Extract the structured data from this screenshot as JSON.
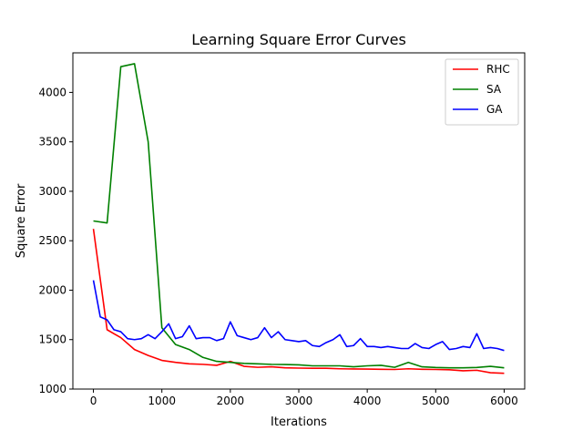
{
  "chart_data": {
    "type": "line",
    "title": "Learning Square Error Curves",
    "xlabel": "Iterations",
    "ylabel": "Square Error",
    "xlim": [
      -300,
      6300
    ],
    "ylim": [
      1000,
      4400
    ],
    "xticks": [
      0,
      1000,
      2000,
      3000,
      4000,
      5000,
      6000
    ],
    "yticks": [
      1000,
      1500,
      2000,
      2500,
      3000,
      3500,
      4000
    ],
    "grid": false,
    "legend_position": "top-right",
    "series": [
      {
        "name": "RHC",
        "color": "#ff0000",
        "x": [
          0,
          200,
          400,
          600,
          800,
          1000,
          1200,
          1400,
          1600,
          1800,
          2000,
          2200,
          2400,
          2600,
          2800,
          3000,
          3200,
          3400,
          3600,
          3800,
          4000,
          4200,
          4400,
          4600,
          4800,
          5000,
          5200,
          5400,
          5600,
          5800,
          6000
        ],
        "values": [
          2620,
          1600,
          1520,
          1400,
          1340,
          1290,
          1270,
          1255,
          1250,
          1240,
          1280,
          1230,
          1220,
          1225,
          1215,
          1212,
          1210,
          1210,
          1205,
          1203,
          1202,
          1200,
          1198,
          1205,
          1200,
          1198,
          1195,
          1185,
          1190,
          1165,
          1160
        ]
      },
      {
        "name": "SA",
        "color": "#008000",
        "x": [
          0,
          200,
          400,
          600,
          800,
          1000,
          1200,
          1400,
          1600,
          1800,
          2000,
          2200,
          2400,
          2600,
          2800,
          3000,
          3200,
          3400,
          3600,
          3800,
          4000,
          4200,
          4400,
          4600,
          4800,
          5000,
          5200,
          5400,
          5600,
          5800,
          6000
        ],
        "values": [
          2700,
          2680,
          4260,
          4290,
          3500,
          1620,
          1450,
          1400,
          1320,
          1280,
          1270,
          1260,
          1255,
          1250,
          1248,
          1245,
          1235,
          1235,
          1235,
          1225,
          1235,
          1240,
          1220,
          1270,
          1225,
          1218,
          1215,
          1215,
          1218,
          1230,
          1215
        ]
      },
      {
        "name": "GA",
        "color": "#0000ff",
        "x": [
          0,
          100,
          200,
          300,
          400,
          500,
          600,
          700,
          800,
          900,
          1000,
          1100,
          1200,
          1300,
          1400,
          1500,
          1600,
          1700,
          1800,
          1900,
          2000,
          2100,
          2200,
          2300,
          2400,
          2500,
          2600,
          2700,
          2800,
          2900,
          3000,
          3100,
          3200,
          3300,
          3400,
          3500,
          3600,
          3700,
          3800,
          3900,
          4000,
          4100,
          4200,
          4300,
          4400,
          4500,
          4600,
          4700,
          4800,
          4900,
          5000,
          5100,
          5200,
          5300,
          5400,
          5500,
          5600,
          5700,
          5800,
          5900,
          6000
        ],
        "values": [
          2100,
          1730,
          1700,
          1600,
          1580,
          1510,
          1500,
          1510,
          1550,
          1510,
          1580,
          1660,
          1510,
          1530,
          1640,
          1510,
          1520,
          1520,
          1490,
          1510,
          1680,
          1540,
          1520,
          1500,
          1520,
          1620,
          1520,
          1580,
          1500,
          1490,
          1480,
          1490,
          1440,
          1430,
          1470,
          1500,
          1550,
          1430,
          1440,
          1510,
          1430,
          1430,
          1420,
          1430,
          1420,
          1410,
          1410,
          1460,
          1420,
          1410,
          1450,
          1480,
          1400,
          1410,
          1430,
          1420,
          1560,
          1410,
          1420,
          1410,
          1390
        ]
      }
    ]
  }
}
